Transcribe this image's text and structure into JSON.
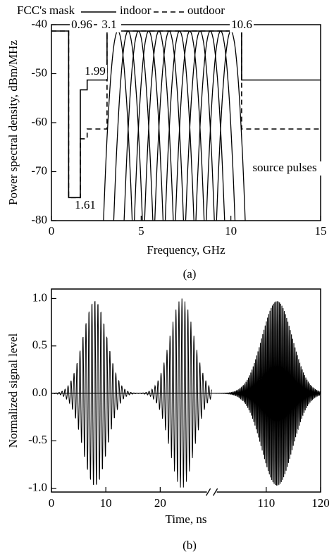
{
  "chart_data": [
    {
      "type": "step-mask",
      "legend_title": "FCC's mask",
      "xlabel": "Frequency, GHz",
      "ylabel": "Power spectral density, dBm/MHz",
      "caption": "(a)",
      "xlim": [
        0,
        15
      ],
      "xticks": [
        0,
        5,
        10,
        15
      ],
      "ylim": [
        -80,
        -40
      ],
      "yticks": [
        -40,
        -50,
        -60,
        -70,
        -80
      ],
      "series": [
        {
          "name": "indoor",
          "style": "solid",
          "color": "#000000",
          "x": [
            0,
            0.96,
            0.96,
            1.61,
            1.61,
            1.99,
            1.99,
            3.1,
            3.1,
            10.6,
            10.6,
            15
          ],
          "values": [
            -41.3,
            -41.3,
            -75.3,
            -75.3,
            -53.3,
            -53.3,
            -51.3,
            -51.3,
            -41.3,
            -41.3,
            -51.3,
            -51.3
          ]
        },
        {
          "name": "outdoor",
          "style": "dashed",
          "color": "#000000",
          "x": [
            0,
            0.96,
            0.96,
            1.61,
            1.61,
            1.99,
            1.99,
            3.1,
            3.1,
            10.6,
            10.6,
            15
          ],
          "values": [
            -41.3,
            -41.3,
            -75.3,
            -75.3,
            -63.3,
            -63.3,
            -61.3,
            -61.3,
            -41.3,
            -41.3,
            -61.3,
            -61.3
          ]
        }
      ],
      "source_pulses": {
        "centers": [
          3.7,
          4.27,
          4.85,
          5.42,
          5.99,
          6.56,
          7.14,
          7.71,
          8.28,
          8.85,
          9.43,
          10.0
        ],
        "peak": -41.3,
        "half_width": 0.8
      },
      "annotations": [
        "0.96",
        "3.1",
        "10.6",
        "1.99",
        "1.61",
        "source pulses"
      ]
    },
    {
      "type": "pulse-train",
      "xlabel": "Time, ns",
      "ylabel": "Normalized signal level",
      "caption": "(b)",
      "xlim": [
        0,
        120
      ],
      "x_break": [
        29.5,
        100
      ],
      "xticks": [
        0,
        10,
        20,
        110,
        120
      ],
      "ylim": [
        -1.04,
        1.1
      ],
      "yticks": [
        {
          "value": -1,
          "label": "-1.0"
        },
        {
          "value": -0.5,
          "label": "-0.5"
        },
        {
          "value": 0,
          "label": "0.0"
        },
        0.5,
        {
          "value": 1,
          "label": "1.0"
        }
      ],
      "pulses": [
        {
          "center": 8,
          "amplitude": 1,
          "sigma": 2.2,
          "period": 0.55
        },
        {
          "center": 24,
          "amplitude": 1,
          "sigma": 2.2,
          "period": 0.55
        },
        {
          "center": 112,
          "amplitude": 1,
          "sigma": 2.8,
          "period": 0.22
        }
      ]
    }
  ]
}
